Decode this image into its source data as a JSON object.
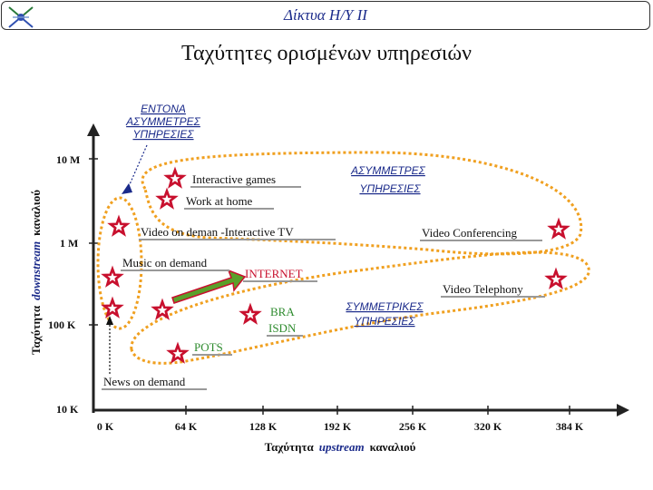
{
  "header": {
    "title": "Δίκτυα Η/Υ ΙΙ"
  },
  "page_title": "Ταχύτητες ορισμένων υπηρεσιών",
  "axes": {
    "x_ticks": [
      "0 K",
      "64 K",
      "128 K",
      "192 K",
      "256 K",
      "320 K",
      "384 K"
    ],
    "y_ticks": [
      "10 M",
      "1 M",
      "100 K",
      "10 K"
    ],
    "x_label_pre": "Ταχύτητα",
    "x_label_mid": "upstream",
    "x_label_post": "καναλιού",
    "y_label_pre": "Ταχύτητα",
    "y_label_mid": "downstream",
    "y_label_post": "καναλιού"
  },
  "groups": {
    "intense_asym": [
      "ΕΝΤΟΝΑ",
      "ΑΣΥΜΜΕΤΡΕΣ",
      "ΥΠΗΡΕΣΙΕΣ"
    ],
    "asym": [
      "ΑΣΥΜΜΕΤΡΕΣ",
      "ΥΠΗΡΕΣΙΕΣ"
    ],
    "sym": [
      "ΣΥΜΜΕΤΡΙΚΕΣ",
      "ΥΠΗΡΕΣΙΕΣ"
    ]
  },
  "services": {
    "interactive_games": "Interactive games",
    "work_at_home": "Work at home",
    "video_on_demand": "Video on deman -Interactive TV",
    "video_conferencing": "Video Conferencing",
    "music_on_demand": "Music on demand",
    "internet": "INTERNET",
    "video_telephony": "Video Telephony",
    "bra": "BRA",
    "isdn": "ISDN",
    "pots": "POTS",
    "news_on_demand": "News on demand"
  },
  "colors": {
    "ellipse": "#f0a020",
    "star_fill": "#c8102e",
    "group_text": "#1a2a8a",
    "internet": "#c8102e",
    "green": "#2e8b2e",
    "axis": "#222222"
  }
}
